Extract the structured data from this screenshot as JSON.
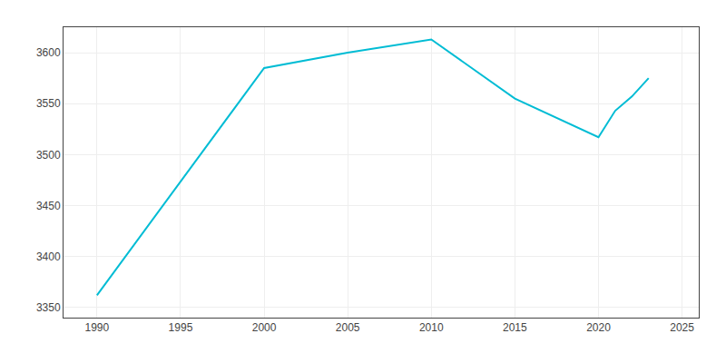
{
  "chart_data": {
    "type": "line",
    "x": [
      1990,
      2000,
      2005,
      2010,
      2015,
      2020,
      2021,
      2022,
      2023
    ],
    "values": [
      3362,
      3585,
      3600,
      3613,
      3555,
      3517,
      3543,
      3557,
      3575
    ],
    "color": "#00BCD4",
    "xlim": [
      1988,
      2026
    ],
    "ylim": [
      3340,
      3625
    ],
    "xticks": [
      1990,
      1995,
      2000,
      2005,
      2010,
      2015,
      2020,
      2025
    ],
    "yticks": [
      3350,
      3400,
      3450,
      3500,
      3550,
      3600
    ],
    "grid": true
  }
}
